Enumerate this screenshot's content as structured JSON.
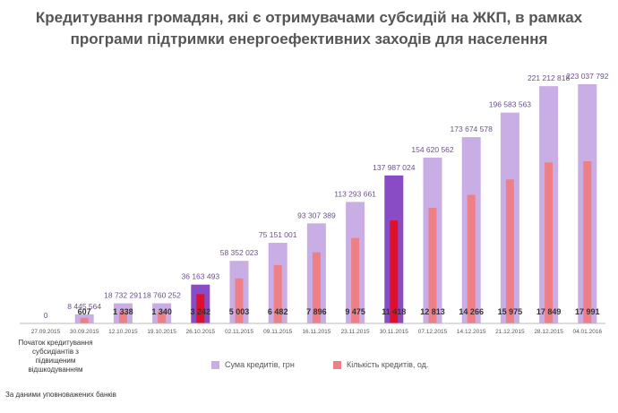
{
  "title_line1": "Кредитування громадян, які є отримувачами субсидій на ЖКП, в рамках",
  "title_line2": "програми підтримки енергоефективних заходів для населення",
  "note": "Початок кредитування субсидіантів з підвищеним відшкодуванням",
  "source": "За даними уповноважених банків",
  "colors": {
    "sum_bar": "#c9aee6",
    "sum_bar_highlight": "#8a4cc4",
    "count_bar": "#ee7f86",
    "count_bar_highlight": "#e0102a",
    "sum_label": "#6b5088",
    "count_label": "#333333"
  },
  "chart_data": {
    "type": "bar",
    "categories": [
      "27.09.2015",
      "30.09.2015",
      "12.10.2015",
      "19.10.2015",
      "26.10.2015",
      "02.11.2015",
      "09.11.2015",
      "16.11.2015",
      "23.11.2015",
      "30.11.2015",
      "07.12.2015",
      "14.12.2015",
      "21.12.2015",
      "28.12.2015",
      "04.01.2016"
    ],
    "series": [
      {
        "name": "Сума кредитів, грн",
        "values": [
          0,
          8445564,
          18732291,
          18760252,
          36163493,
          58352023,
          75151001,
          93307389,
          113293661,
          137987024,
          154620562,
          173674578,
          196583563,
          221212818,
          223037792
        ],
        "labels": [
          "0",
          "8 445 564",
          "18 732 291",
          "18 760 252",
          "36 163 493",
          "58 352 023",
          "75 151 001",
          "93 307 389",
          "113 293 661",
          "137 987 024",
          "154 620 562",
          "173 674 578",
          "196 583 563",
          "221 212 818",
          "223 037 792"
        ]
      },
      {
        "name": "Кількість кредитів, од.",
        "values": [
          0,
          607,
          1338,
          1340,
          3242,
          5003,
          6482,
          7896,
          9475,
          11418,
          12813,
          14266,
          15975,
          17849,
          17991
        ],
        "labels": [
          "",
          "607",
          "1 338",
          "1 340",
          "3 242",
          "5 003",
          "6 482",
          "7 896",
          "9 475",
          "11 418",
          "12 813",
          "14 266",
          "15 975",
          "17 849",
          "17 991"
        ]
      }
    ],
    "highlight_categories": [
      "26.10.2015",
      "30.11.2015"
    ],
    "legend_position": "bottom"
  }
}
